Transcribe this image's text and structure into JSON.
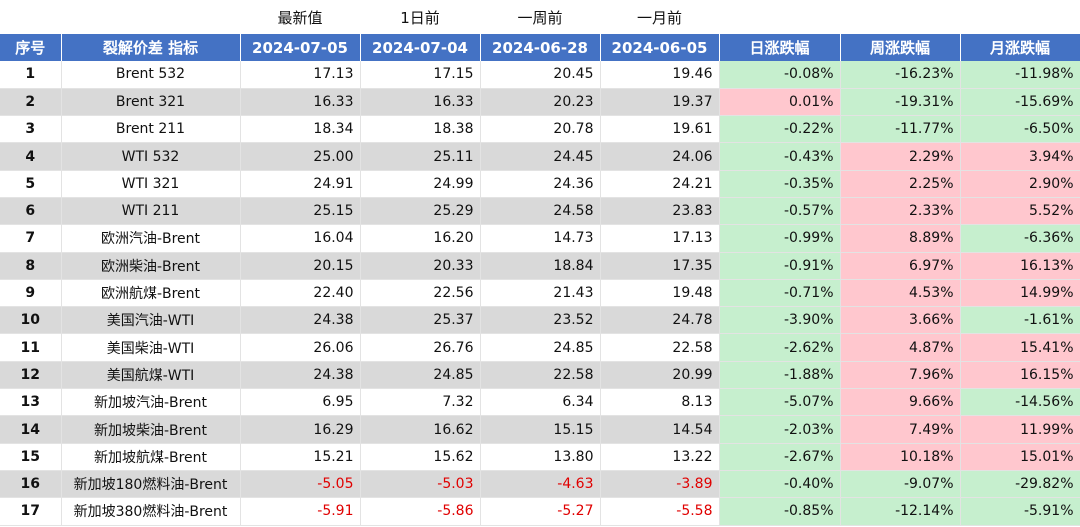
{
  "caption": {
    "latest": "最新值",
    "day_before": "1日前",
    "week_before": "一周前",
    "month_before": "一月前"
  },
  "headers": {
    "idx": "序号",
    "name": "裂解价差 指标",
    "d0": "2024-07-05",
    "d1": "2024-07-04",
    "d2": "2024-06-28",
    "d3": "2024-06-05",
    "chg_day": "日涨跌幅",
    "chg_week": "周涨跌幅",
    "chg_month": "月涨跌幅"
  },
  "rows": [
    {
      "idx": "1",
      "name": "Brent 532",
      "v0": "17.13",
      "v1": "17.15",
      "v2": "20.45",
      "v3": "19.46",
      "cd": "-0.08%",
      "cw": "-16.23%",
      "cm": "-11.98%"
    },
    {
      "idx": "2",
      "name": "Brent 321",
      "v0": "16.33",
      "v1": "16.33",
      "v2": "20.23",
      "v3": "19.37",
      "cd": "0.01%",
      "cw": "-19.31%",
      "cm": "-15.69%"
    },
    {
      "idx": "3",
      "name": "Brent 211",
      "v0": "18.34",
      "v1": "18.38",
      "v2": "20.78",
      "v3": "19.61",
      "cd": "-0.22%",
      "cw": "-11.77%",
      "cm": "-6.50%"
    },
    {
      "idx": "4",
      "name": "WTI 532",
      "v0": "25.00",
      "v1": "25.11",
      "v2": "24.45",
      "v3": "24.06",
      "cd": "-0.43%",
      "cw": "2.29%",
      "cm": "3.94%"
    },
    {
      "idx": "5",
      "name": "WTI 321",
      "v0": "24.91",
      "v1": "24.99",
      "v2": "24.36",
      "v3": "24.21",
      "cd": "-0.35%",
      "cw": "2.25%",
      "cm": "2.90%"
    },
    {
      "idx": "6",
      "name": "WTI 211",
      "v0": "25.15",
      "v1": "25.29",
      "v2": "24.58",
      "v3": "23.83",
      "cd": "-0.57%",
      "cw": "2.33%",
      "cm": "5.52%"
    },
    {
      "idx": "7",
      "name": "欧洲汽油-Brent",
      "v0": "16.04",
      "v1": "16.20",
      "v2": "14.73",
      "v3": "17.13",
      "cd": "-0.99%",
      "cw": "8.89%",
      "cm": "-6.36%"
    },
    {
      "idx": "8",
      "name": "欧洲柴油-Brent",
      "v0": "20.15",
      "v1": "20.33",
      "v2": "18.84",
      "v3": "17.35",
      "cd": "-0.91%",
      "cw": "6.97%",
      "cm": "16.13%"
    },
    {
      "idx": "9",
      "name": "欧洲航煤-Brent",
      "v0": "22.40",
      "v1": "22.56",
      "v2": "21.43",
      "v3": "19.48",
      "cd": "-0.71%",
      "cw": "4.53%",
      "cm": "14.99%"
    },
    {
      "idx": "10",
      "name": "美国汽油-WTI",
      "v0": "24.38",
      "v1": "25.37",
      "v2": "23.52",
      "v3": "24.78",
      "cd": "-3.90%",
      "cw": "3.66%",
      "cm": "-1.61%"
    },
    {
      "idx": "11",
      "name": "美国柴油-WTI",
      "v0": "26.06",
      "v1": "26.76",
      "v2": "24.85",
      "v3": "22.58",
      "cd": "-2.62%",
      "cw": "4.87%",
      "cm": "15.41%"
    },
    {
      "idx": "12",
      "name": "美国航煤-WTI",
      "v0": "24.38",
      "v1": "24.85",
      "v2": "22.58",
      "v3": "20.99",
      "cd": "-1.88%",
      "cw": "7.96%",
      "cm": "16.15%"
    },
    {
      "idx": "13",
      "name": "新加坡汽油-Brent",
      "v0": "6.95",
      "v1": "7.32",
      "v2": "6.34",
      "v3": "8.13",
      "cd": "-5.07%",
      "cw": "9.66%",
      "cm": "-14.56%"
    },
    {
      "idx": "14",
      "name": "新加坡柴油-Brent",
      "v0": "16.29",
      "v1": "16.62",
      "v2": "15.15",
      "v3": "14.54",
      "cd": "-2.03%",
      "cw": "7.49%",
      "cm": "11.99%"
    },
    {
      "idx": "15",
      "name": "新加坡航煤-Brent",
      "v0": "15.21",
      "v1": "15.62",
      "v2": "13.80",
      "v3": "13.22",
      "cd": "-2.67%",
      "cw": "10.18%",
      "cm": "15.01%"
    },
    {
      "idx": "16",
      "name": "新加坡180燃料油-Brent",
      "v0": "-5.05",
      "v1": "-5.03",
      "v2": "-4.63",
      "v3": "-3.89",
      "cd": "-0.40%",
      "cw": "-9.07%",
      "cm": "-29.82%"
    },
    {
      "idx": "17",
      "name": "新加坡380燃料油-Brent",
      "v0": "-5.91",
      "v1": "-5.86",
      "v2": "-5.27",
      "v3": "-5.58",
      "cd": "-0.85%",
      "cw": "-12.14%",
      "cm": "-5.91%"
    }
  ],
  "colors": {
    "header_bg": "#4472c4",
    "increase_bg": "#ffc7ce",
    "decrease_bg": "#c6efce",
    "alt_row_bg": "#d9d9d9",
    "negative_text": "#e00000"
  }
}
